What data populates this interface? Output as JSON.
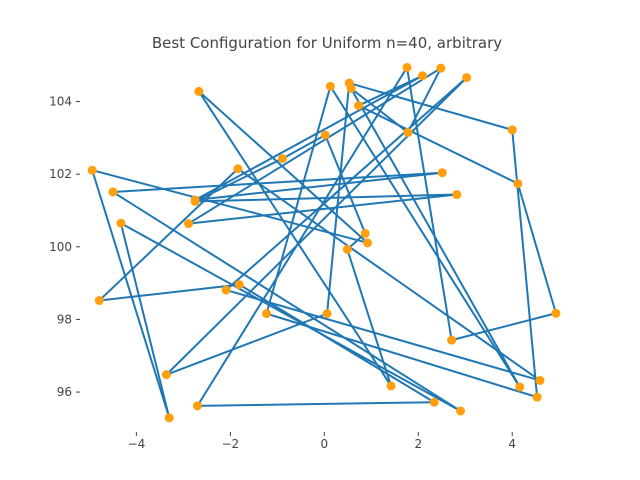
{
  "chart_data": {
    "type": "line",
    "title": "Best Configuration for Uniform n=40, arbitrary",
    "xlabel": "",
    "ylabel": "",
    "xlim": [
      -5.2,
      5.4
    ],
    "ylim": [
      94.9,
      105.2
    ],
    "grid": false,
    "x_ticks": [
      -4,
      -2,
      0,
      2,
      4
    ],
    "y_ticks": [
      96,
      98,
      100,
      102,
      104
    ],
    "x_tick_labels": [
      "−4",
      "−2",
      "0",
      "2",
      "4"
    ],
    "y_tick_labels": [
      "96",
      "98",
      "100",
      "102",
      "104"
    ],
    "line_color": "#1f77b4",
    "marker_color": "#ff9f0e",
    "points": [
      {
        "x": -2.67,
        "y": 104.28
      },
      {
        "x": 0.92,
        "y": 100.11
      },
      {
        "x": -4.94,
        "y": 102.11
      },
      {
        "x": -3.3,
        "y": 95.29
      },
      {
        "x": -4.33,
        "y": 100.65
      },
      {
        "x": 2.9,
        "y": 95.48
      },
      {
        "x": -4.5,
        "y": 101.51
      },
      {
        "x": 2.51,
        "y": 102.04
      },
      {
        "x": -2.75,
        "y": 101.29
      },
      {
        "x": 2.09,
        "y": 104.71
      },
      {
        "x": 0.73,
        "y": 103.89
      },
      {
        "x": 4.12,
        "y": 101.74
      },
      {
        "x": 4.93,
        "y": 98.17
      },
      {
        "x": 2.71,
        "y": 97.43
      },
      {
        "x": 1.76,
        "y": 104.94
      },
      {
        "x": -2.7,
        "y": 95.62
      },
      {
        "x": 2.34,
        "y": 95.72
      },
      {
        "x": -1.81,
        "y": 98.96
      },
      {
        "x": -4.79,
        "y": 98.52
      },
      {
        "x": -1.84,
        "y": 102.15
      },
      {
        "x": 4.59,
        "y": 96.32
      },
      {
        "x": -2.09,
        "y": 98.81
      },
      {
        "x": 3.03,
        "y": 104.66
      },
      {
        "x": -3.36,
        "y": 96.48
      },
      {
        "x": 0.06,
        "y": 98.16
      },
      {
        "x": 0.53,
        "y": 104.51
      },
      {
        "x": 4.0,
        "y": 103.22
      },
      {
        "x": 4.53,
        "y": 95.86
      },
      {
        "x": -1.23,
        "y": 98.16
      },
      {
        "x": 0.13,
        "y": 104.42
      },
      {
        "x": 4.16,
        "y": 96.14
      },
      {
        "x": 0.57,
        "y": 104.36
      },
      {
        "x": 1.78,
        "y": 103.15
      },
      {
        "x": 2.48,
        "y": 104.92
      },
      {
        "x": -2.89,
        "y": 100.64
      },
      {
        "x": 2.82,
        "y": 101.44
      },
      {
        "x": -2.75,
        "y": 101.25
      },
      {
        "x": -0.89,
        "y": 102.43
      },
      {
        "x": 0.02,
        "y": 103.08
      },
      {
        "x": 0.87,
        "y": 100.37
      },
      {
        "x": 0.49,
        "y": 99.93
      },
      {
        "x": 1.42,
        "y": 96.17
      }
    ]
  }
}
